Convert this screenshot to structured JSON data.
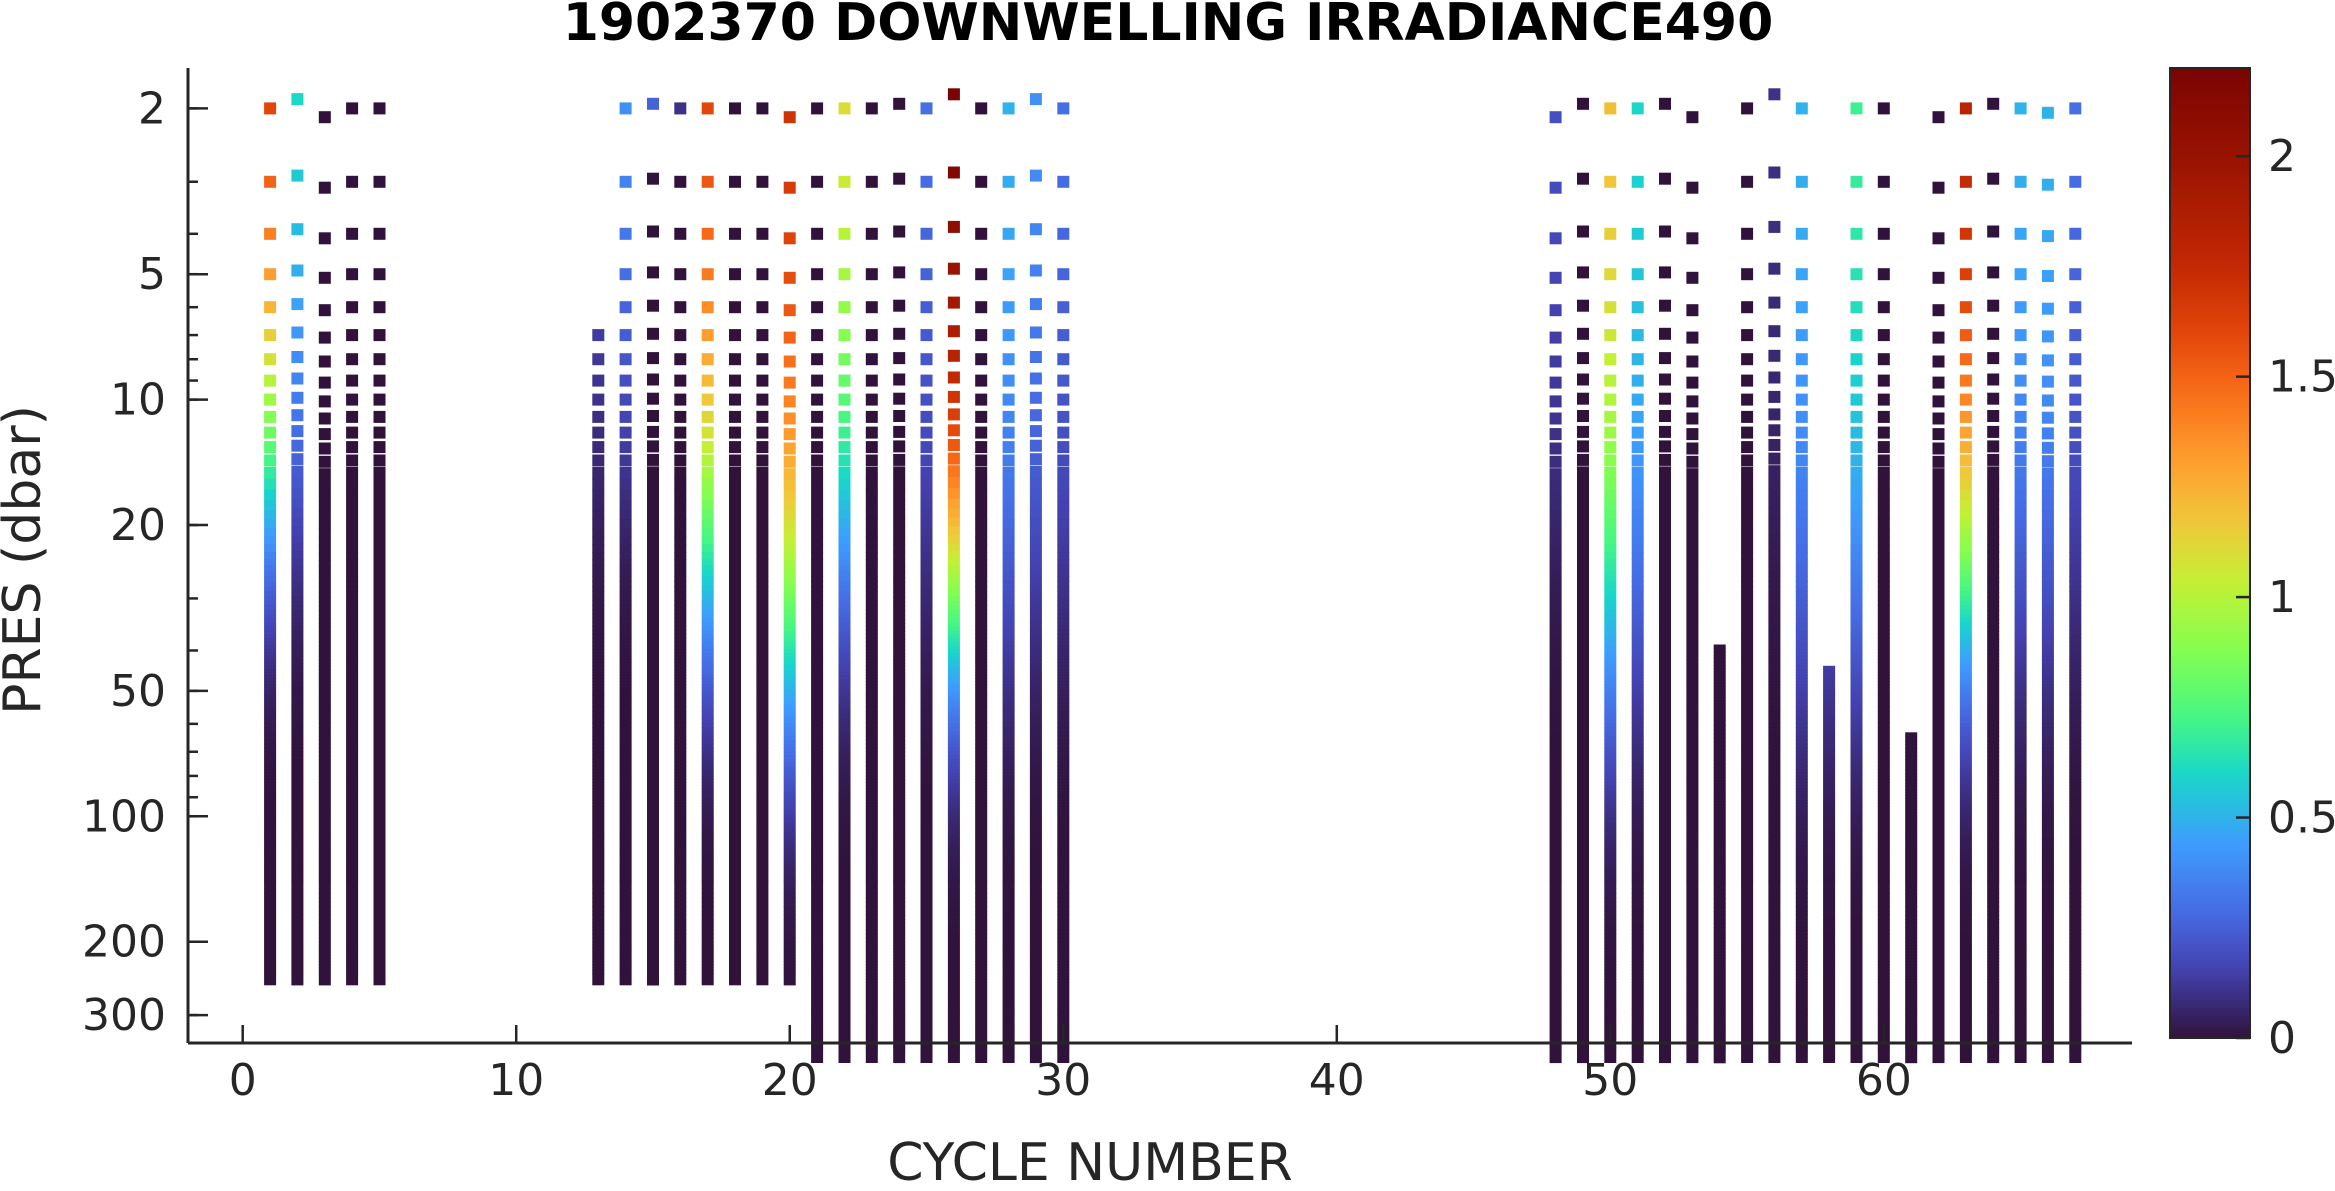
{
  "chart_data": {
    "type": "scatter",
    "title": "1902370  DOWNWELLING IRRADIANCE490",
    "xlabel": "CYCLE NUMBER",
    "ylabel": "PRES (dbar)",
    "xlim": [
      -2,
      69
    ],
    "ylim": [
      1.6,
      350
    ],
    "y_scale": "log",
    "y_reversed": true,
    "grid": false,
    "x_ticks": [
      0,
      10,
      20,
      30,
      40,
      50,
      60
    ],
    "x_tick_labels": [
      "0",
      "10",
      "20",
      "30",
      "40",
      "50",
      "60"
    ],
    "y_ticks": [
      2,
      5,
      10,
      20,
      50,
      100,
      200,
      300
    ],
    "y_tick_labels": [
      "2",
      "5",
      "10",
      "20",
      "50",
      "100",
      "200",
      "300"
    ],
    "colorbar": {
      "colormap": "turbo",
      "range": [
        0,
        2.2
      ],
      "ticks": [
        0,
        0.5,
        1,
        1.5,
        2
      ],
      "tick_labels": [
        "0",
        "0.5",
        "1",
        "1.5",
        "2"
      ]
    },
    "cycles": [
      1,
      2,
      3,
      4,
      5,
      13,
      14,
      15,
      16,
      17,
      18,
      19,
      20,
      21,
      22,
      23,
      24,
      25,
      26,
      27,
      28,
      29,
      30,
      48,
      49,
      50,
      51,
      52,
      53,
      54,
      55,
      56,
      57,
      58,
      59,
      60,
      61,
      62,
      63,
      64,
      65,
      66,
      67
    ],
    "max_pressure": [
      250,
      250,
      250,
      250,
      250,
      250,
      250,
      250,
      250,
      250,
      250,
      250,
      250,
      380,
      380,
      380,
      380,
      380,
      380,
      380,
      380,
      380,
      380,
      380,
      380,
      380,
      380,
      380,
      380,
      380,
      380,
      380,
      380,
      380,
      380,
      380,
      380,
      380,
      380,
      380,
      380,
      380,
      380
    ],
    "first_pressure": [
      2.0,
      1.9,
      2.1,
      2.0,
      2.0,
      7.0,
      2.0,
      1.95,
      2.0,
      2.0,
      2.0,
      2.0,
      2.1,
      2.0,
      2.0,
      2.0,
      1.95,
      2.0,
      1.85,
      2.0,
      2.0,
      1.9,
      2.0,
      2.1,
      1.95,
      2.0,
      2.0,
      1.95,
      2.1,
      40,
      2.0,
      1.85,
      2.0,
      45,
      2.0,
      2.0,
      65,
      2.1,
      2.0,
      1.95,
      2.0,
      2.05,
      2.0
    ],
    "surface_value": [
      1.6,
      0.6,
      0.0,
      0.0,
      0.0,
      0.2,
      0.4,
      0.2,
      0.1,
      1.6,
      0.0,
      0.0,
      1.7,
      0.0,
      1.1,
      0.0,
      0.0,
      0.3,
      2.2,
      0.0,
      0.5,
      0.4,
      0.3,
      0.2,
      0.0,
      1.2,
      0.6,
      0.0,
      0.0,
      0.0,
      0.0,
      0.1,
      0.5,
      0.4,
      0.7,
      0.0,
      0.0,
      0.0,
      1.8,
      0.0,
      0.5,
      0.5,
      0.3
    ],
    "decay_depth": [
      15,
      14,
      0.2,
      0.2,
      0.2,
      12,
      10,
      0.2,
      0.2,
      25,
      0.2,
      0.2,
      40,
      0.2,
      22,
      0.2,
      0.2,
      20,
      30,
      0.2,
      30,
      25,
      25,
      15,
      0.2,
      40,
      35,
      0.2,
      0.2,
      0.2,
      0.2,
      18,
      40,
      40,
      35,
      0.2,
      0.2,
      0.2,
      30,
      0.2,
      30,
      30,
      25
    ]
  }
}
